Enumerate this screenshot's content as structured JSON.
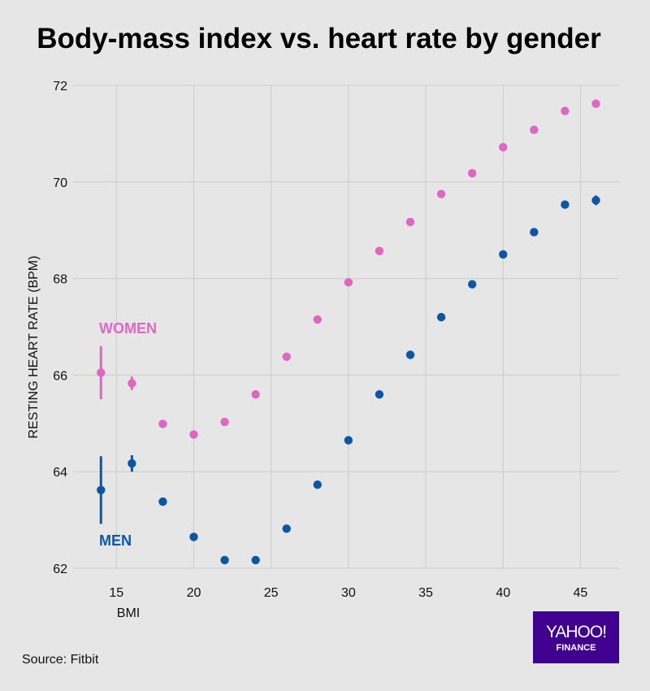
{
  "title": "Body-mass index vs. heart rate by gender",
  "source": "Source: Fitbit",
  "logo": {
    "top": "YAHOO!",
    "bottom": "FINANCE"
  },
  "colors": {
    "women": "#e066c3",
    "men": "#0a57a5",
    "grid": "#cccccc",
    "background": "#e6e6e6",
    "logo": "#400090"
  },
  "chart_data": {
    "type": "scatter",
    "xlabel": "BMI",
    "ylabel": "RESTING HEART RATE (BPM)",
    "xlim": [
      12.2,
      47.5
    ],
    "ylim": [
      62,
      72
    ],
    "xticks": [
      15,
      20,
      25,
      30,
      35,
      40,
      45
    ],
    "yticks": [
      62,
      64,
      66,
      68,
      70,
      72
    ],
    "grid": true,
    "series": [
      {
        "name": "WOMEN",
        "color": "#e066c3",
        "x": [
          14,
          16,
          18,
          20,
          22,
          24,
          26,
          28,
          30,
          32,
          34,
          36,
          38,
          40,
          42,
          44,
          46
        ],
        "y": [
          66.05,
          65.83,
          64.99,
          64.77,
          65.03,
          65.6,
          66.38,
          67.15,
          67.92,
          68.57,
          69.17,
          69.75,
          70.18,
          70.72,
          71.08,
          71.47,
          71.62
        ],
        "error": [
          0.55,
          0.14,
          0,
          0,
          0,
          0,
          0,
          0,
          0,
          0,
          0,
          0,
          0,
          0,
          0,
          0,
          0
        ]
      },
      {
        "name": "MEN",
        "color": "#0a57a5",
        "x": [
          14,
          16,
          18,
          20,
          22,
          24,
          26,
          28,
          30,
          32,
          34,
          36,
          38,
          40,
          42,
          44,
          46
        ],
        "y": [
          63.62,
          64.17,
          63.38,
          62.65,
          62.17,
          62.17,
          62.82,
          63.73,
          64.65,
          65.6,
          66.42,
          67.2,
          67.88,
          68.5,
          68.96,
          69.53,
          69.62
        ],
        "error": [
          0.7,
          0.17,
          0,
          0,
          0,
          0,
          0,
          0,
          0,
          0,
          0,
          0,
          0,
          0,
          0,
          0,
          0.1
        ]
      }
    ]
  }
}
